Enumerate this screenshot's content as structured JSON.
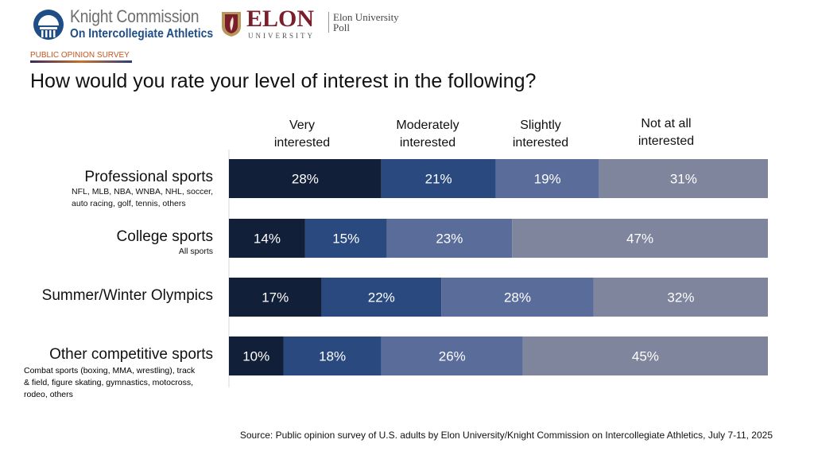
{
  "header": {
    "knight_name": "Knight Commission",
    "knight_sub": "On Intercollegiate Athletics",
    "elon_word": "ELON",
    "elon_univ": "UNIVERSITY",
    "elon_poll_line1": "Elon University",
    "elon_poll_line2": "Poll",
    "survey_tag": "PUBLIC OPINION SURVEY"
  },
  "title": "How would you rate your level of interest in the following?",
  "source": "Source: Public opinion survey of U.S. adults by Elon University/Knight Commission on Intercollegiate Athletics, July 7-11, 2025",
  "chart_data": {
    "type": "bar",
    "orientation": "horizontal",
    "stacked": true,
    "title": "How would you rate your level of interest in the following?",
    "categories": [
      {
        "label": "Professional sports",
        "sub": [
          "NFL, MLB, NBA, WNBA, NHL, soccer,",
          "auto racing, golf, tennis, others"
        ]
      },
      {
        "label": "College sports",
        "sub": [
          "All sports"
        ]
      },
      {
        "label": "Summer/Winter Olympics",
        "sub": []
      },
      {
        "label": "Other competitive sports",
        "sub": [
          "Combat sports (boxing, MMA, wrestling), track",
          "& field, figure skating, gymnastics, motocross,",
          "rodeo, others"
        ]
      }
    ],
    "series": [
      {
        "name": "Very interested",
        "name_lines": [
          "Very",
          "interested"
        ],
        "color": "#121f38",
        "values": [
          28,
          14,
          17,
          10
        ]
      },
      {
        "name": "Moderately interested",
        "name_lines": [
          "Moderately",
          "interested"
        ],
        "color": "#2a4a7f",
        "values": [
          21,
          15,
          22,
          18
        ]
      },
      {
        "name": "Slightly interested",
        "name_lines": [
          "Slightly",
          "interested"
        ],
        "color": "#5a6c9a",
        "values": [
          19,
          23,
          28,
          26
        ]
      },
      {
        "name": "Not at all interested",
        "name_lines": [
          "Not at all",
          "interested"
        ],
        "color": "#7e859c",
        "values": [
          31,
          47,
          32,
          45
        ]
      }
    ],
    "value_suffix": "%",
    "legend": "top"
  }
}
